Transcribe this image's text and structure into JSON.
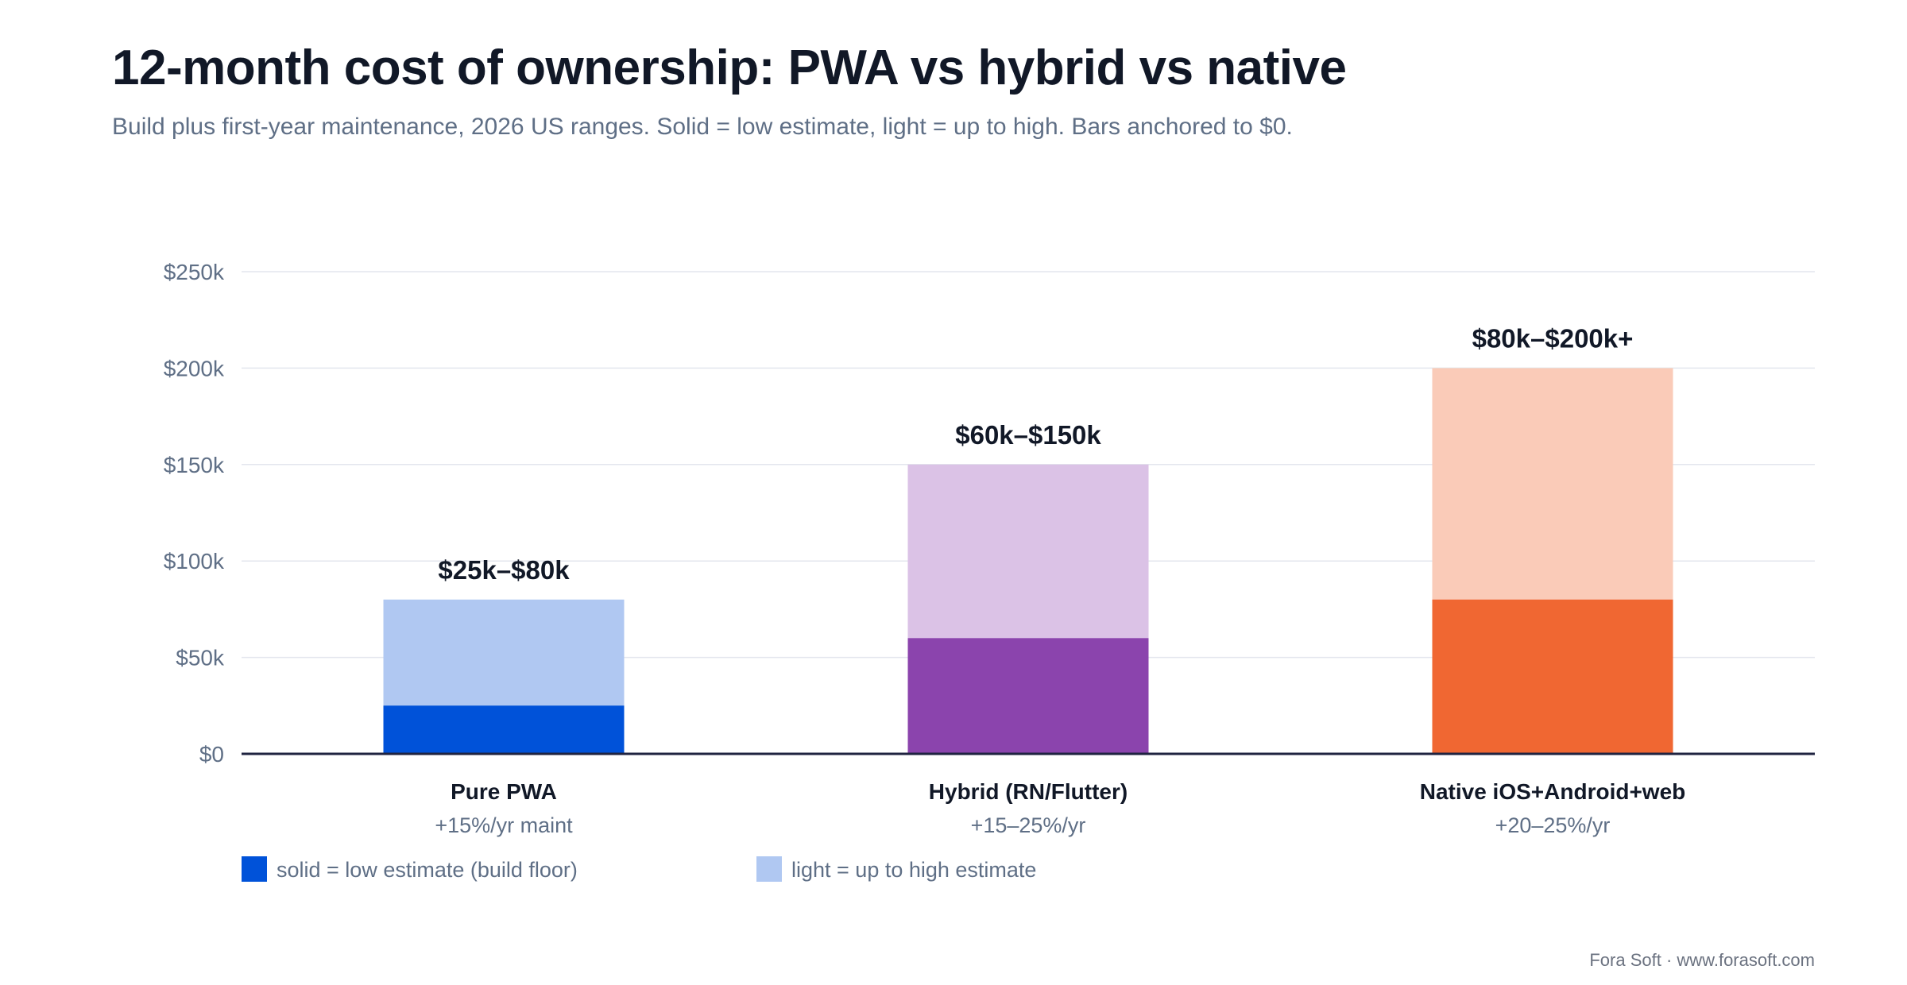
{
  "header": {
    "title": "12-month cost of ownership: PWA vs hybrid vs native",
    "subtitle": "Build plus first-year maintenance, 2026 US ranges. Solid = low estimate, light = up to high. Bars anchored to $0."
  },
  "chart_data": {
    "type": "bar",
    "stacked_range": true,
    "categories": [
      "Pure PWA",
      "Hybrid (RN/Flutter)",
      "Native iOS+Android+web"
    ],
    "category_sublabels": [
      "+15%/yr maint",
      "+15–25%/yr",
      "+20–25%/yr"
    ],
    "low_values": [
      25000,
      60000,
      80000
    ],
    "high_values": [
      80000,
      150000,
      200000
    ],
    "data_labels": [
      "$25k–$80k",
      "$60k–$150k",
      "$80k–$200k+"
    ],
    "ylim": [
      0,
      250000
    ],
    "yticks": [
      0,
      50000,
      100000,
      150000,
      200000,
      250000
    ],
    "ytick_labels": [
      "$0",
      "$50k",
      "$100k",
      "$150k",
      "$200k",
      "$250k"
    ],
    "grid": true,
    "colors": {
      "solid": [
        "#0052d9",
        "#8b44ad",
        "#f06732"
      ],
      "light": [
        "#b0c8f2",
        "#dbc2e6",
        "#facbb8"
      ],
      "grid": "#e3e6ee",
      "axis": "#1f2340",
      "tick_text": "#5f6f86",
      "label_text": "#111827"
    },
    "legend": {
      "placement": "bottom-left",
      "items": [
        {
          "label": "solid = low estimate (build floor)",
          "color": "#0052d9"
        },
        {
          "label": "light = up to high estimate",
          "color": "#b0c8f2"
        }
      ]
    }
  },
  "footer": {
    "credit": "Fora Soft · www.forasoft.com"
  }
}
